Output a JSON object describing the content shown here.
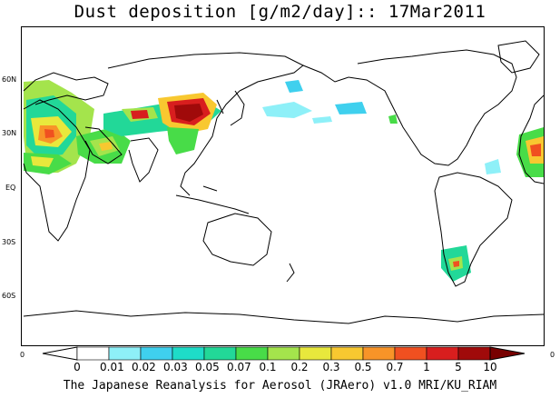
{
  "title": "Dust deposition [g/m2/day]:: 17Mar2011",
  "footer": "The Japanese Reanalysis for Aerosol (JRAero) v1.0 MRI/KU_RIAM",
  "latitude_labels": [
    "60N",
    "30N",
    "EQ",
    "30S",
    "60S"
  ],
  "corner_labels": {
    "left": "0",
    "right": "0"
  },
  "colorbar": {
    "labels": [
      "0",
      "0.01",
      "0.02",
      "0.03",
      "0.05",
      "0.07",
      "0.1",
      "0.2",
      "0.3",
      "0.5",
      "0.7",
      "1",
      "5",
      "10"
    ],
    "colors": [
      "#ffffff",
      "#ffffff",
      "#8ef0f8",
      "#3fd0ee",
      "#1edcc8",
      "#22d898",
      "#48dc48",
      "#a4e44c",
      "#e8e83c",
      "#f8c830",
      "#f89428",
      "#f05020",
      "#d81e1e",
      "#a00a0a",
      "#780000"
    ]
  }
}
